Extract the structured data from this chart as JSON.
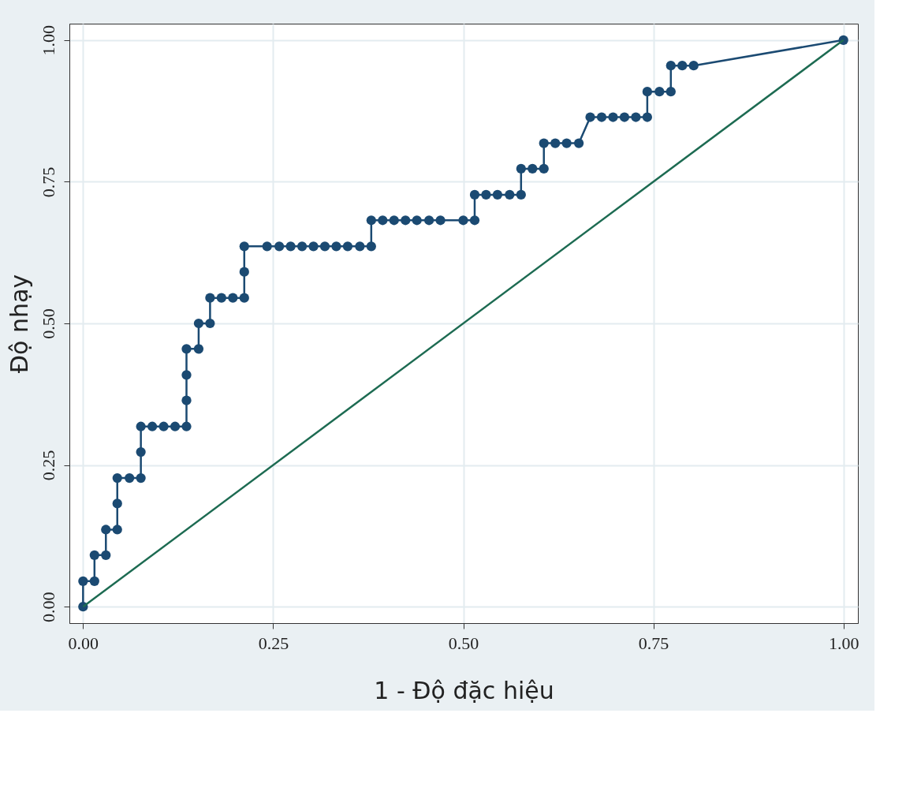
{
  "chart_data": {
    "type": "line",
    "xlabel": "1 - Độ đặc hiệu",
    "ylabel": "Độ nhạy",
    "series": [
      {
        "color": "#1b4a72",
        "marker": "circle",
        "x": [
          0,
          0,
          0.015,
          0.015,
          0.03,
          0.03,
          0.045,
          0.045,
          0.045,
          0.061,
          0.076,
          0.076,
          0.076,
          0.091,
          0.106,
          0.121,
          0.136,
          0.136,
          0.136,
          0.136,
          0.152,
          0.152,
          0.167,
          0.167,
          0.182,
          0.197,
          0.212,
          0.212,
          0.212,
          0.242,
          0.258,
          0.273,
          0.288,
          0.303,
          0.318,
          0.333,
          0.348,
          0.364,
          0.379,
          0.379,
          0.394,
          0.409,
          0.424,
          0.439,
          0.455,
          0.47,
          0.5,
          0.515,
          0.515,
          0.53,
          0.545,
          0.561,
          0.576,
          0.576,
          0.591,
          0.606,
          0.606,
          0.621,
          0.636,
          0.652,
          0.667,
          0.682,
          0.697,
          0.712,
          0.727,
          0.742,
          0.742,
          0.758,
          0.773,
          0.773,
          0.788,
          0.803,
          1
        ],
        "values": [
          0,
          0.045,
          0.045,
          0.091,
          0.091,
          0.136,
          0.136,
          0.182,
          0.227,
          0.227,
          0.227,
          0.273,
          0.318,
          0.318,
          0.318,
          0.318,
          0.318,
          0.364,
          0.409,
          0.455,
          0.455,
          0.5,
          0.5,
          0.545,
          0.545,
          0.545,
          0.545,
          0.591,
          0.636,
          0.636,
          0.636,
          0.636,
          0.636,
          0.636,
          0.636,
          0.636,
          0.636,
          0.636,
          0.636,
          0.682,
          0.682,
          0.682,
          0.682,
          0.682,
          0.682,
          0.682,
          0.682,
          0.682,
          0.727,
          0.727,
          0.727,
          0.727,
          0.727,
          0.773,
          0.773,
          0.773,
          0.818,
          0.818,
          0.818,
          0.818,
          0.864,
          0.864,
          0.864,
          0.864,
          0.864,
          0.864,
          0.909,
          0.909,
          0.909,
          0.955,
          0.955,
          0.955,
          1
        ]
      },
      {
        "color": "#1d6b52",
        "marker": "none",
        "x": [
          0,
          1
        ],
        "values": [
          0,
          1
        ]
      }
    ],
    "xlim": [
      -0.018,
      1.019
    ],
    "ylim": [
      -0.029,
      1.029
    ],
    "xticks": [
      {
        "value": 0,
        "label": "0.00"
      },
      {
        "value": 0.25,
        "label": "0.25"
      },
      {
        "value": 0.5,
        "label": "0.50"
      },
      {
        "value": 0.75,
        "label": "0.75"
      },
      {
        "value": 1,
        "label": "1.00"
      }
    ],
    "yticks": [
      {
        "value": 0,
        "label": "0.00"
      },
      {
        "value": 0.25,
        "label": "0.25"
      },
      {
        "value": 0.5,
        "label": "0.50"
      },
      {
        "value": 0.75,
        "label": "0.75"
      },
      {
        "value": 1,
        "label": "1.00"
      }
    ],
    "grid": true,
    "line_style": "solid"
  }
}
